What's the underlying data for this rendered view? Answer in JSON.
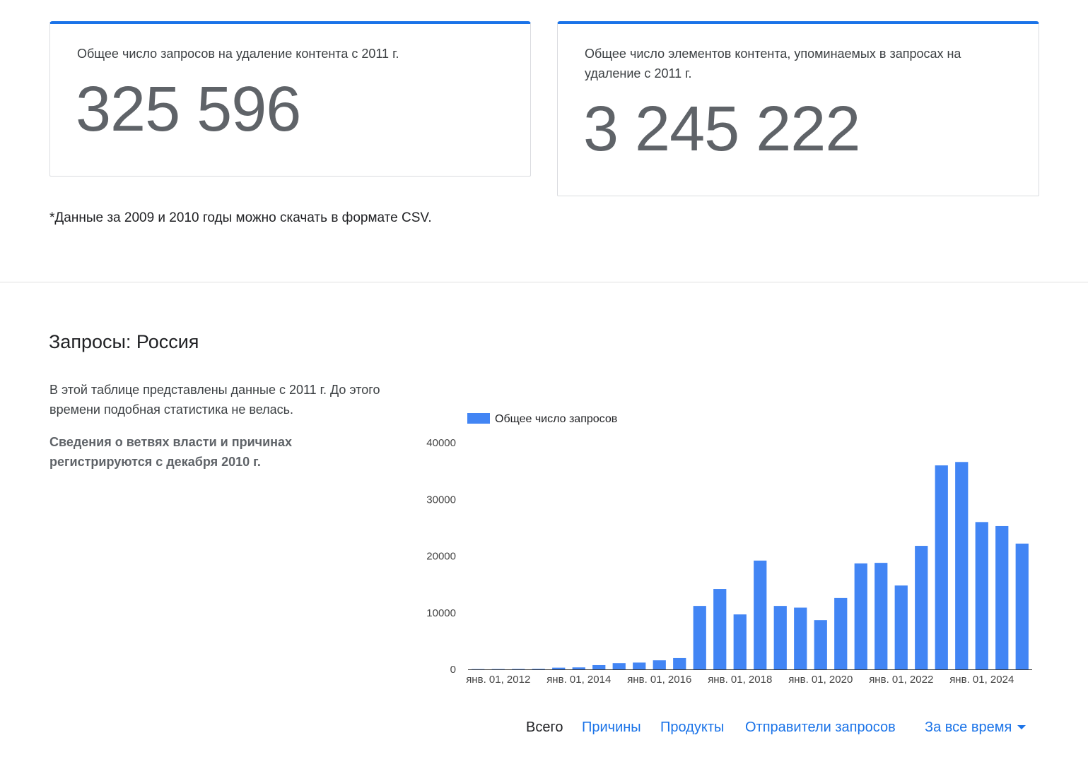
{
  "cards": [
    {
      "label": "Общее число запросов на удаление контента с 2011 г.",
      "value": "325 596"
    },
    {
      "label": "Общее число элементов контента, упоминаемых в запросах на удаление с 2011 г.",
      "value": "3 245 222"
    }
  ],
  "footnote": "*Данные за 2009 и 2010 годы можно скачать в формате CSV.",
  "section": {
    "title": "Запросы: Россия",
    "description": "В этой таблице представлены данные с 2011 г. До этого времени подобная статистика не велась.",
    "note": "Сведения о ветвях власти и причинах регистрируются с декабря 2010 г."
  },
  "chart_data": {
    "type": "bar",
    "series": [
      {
        "name": "Общее число запросов",
        "color": "#4285f4",
        "values": [
          50,
          60,
          80,
          100,
          300,
          350,
          750,
          1100,
          1200,
          1600,
          2000,
          11200,
          14200,
          9700,
          19200,
          11200,
          10900,
          8700,
          12600,
          18700,
          18800,
          14800,
          21800,
          36000,
          36600,
          26000,
          25300,
          22200
        ]
      }
    ],
    "x_ticks": [
      "янв. 01, 2012",
      "янв. 01, 2014",
      "янв. 01, 2016",
      "янв. 01, 2018",
      "янв. 01, 2020",
      "янв. 01, 2022",
      "янв. 01, 2024"
    ],
    "y_ticks": [
      "0",
      "10000",
      "20000",
      "30000",
      "40000"
    ],
    "ylim": [
      0,
      40000
    ],
    "legend_position": "top-left",
    "grid": false
  },
  "bottom_nav": {
    "items": [
      "Всего",
      "Причины",
      "Продукты",
      "Отправители запросов"
    ],
    "active_index": 0,
    "period_select": "За все время",
    "period_icon": "arrow-drop-down-icon"
  }
}
